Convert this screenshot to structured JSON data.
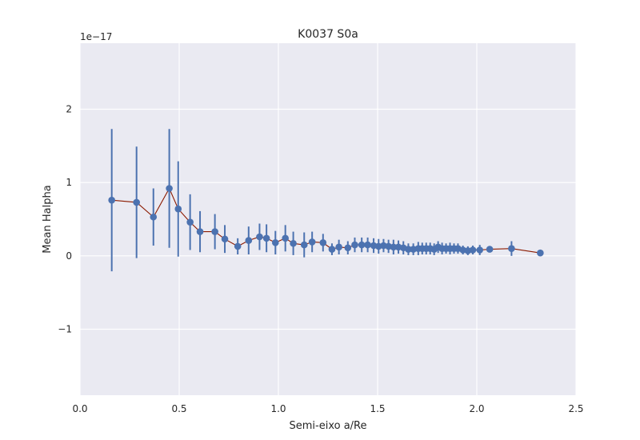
{
  "chart_data": {
    "type": "scatter",
    "title": "K0037 S0a",
    "xlabel": "Semi-eixo a/Re",
    "ylabel": "Mean Halpha",
    "offset_text": "1e−17",
    "xlim": [
      0.0,
      2.5
    ],
    "ylim": [
      -1.9,
      2.9
    ],
    "x_ticks": [
      0.0,
      0.5,
      1.0,
      1.5,
      2.0,
      2.5
    ],
    "x_tick_labels": [
      "0.0",
      "0.5",
      "1.0",
      "1.5",
      "2.0",
      "2.5"
    ],
    "y_ticks": [
      -1,
      0,
      1,
      2
    ],
    "y_tick_labels": [
      "−1",
      "0",
      "1",
      "2"
    ],
    "grid": true,
    "background": "#eaeaf2",
    "grid_color": "#ffffff",
    "series": [
      {
        "marker_color": "#4c72b0",
        "line_color": "#8b1a00",
        "x": [
          0.16,
          0.285,
          0.37,
          0.45,
          0.495,
          0.555,
          0.605,
          0.68,
          0.73,
          0.795,
          0.85,
          0.905,
          0.94,
          0.985,
          1.035,
          1.075,
          1.13,
          1.17,
          1.225,
          1.27,
          1.305,
          1.35,
          1.385,
          1.42,
          1.45,
          1.48,
          1.505,
          1.53,
          1.555,
          1.58,
          1.605,
          1.63,
          1.655,
          1.68,
          1.705,
          1.725,
          1.745,
          1.765,
          1.785,
          1.805,
          1.825,
          1.845,
          1.865,
          1.885,
          1.905,
          1.93,
          1.955,
          1.98,
          2.015,
          2.065,
          2.175,
          2.32
        ],
        "y": [
          0.76,
          0.73,
          0.53,
          0.92,
          0.64,
          0.46,
          0.33,
          0.33,
          0.23,
          0.13,
          0.21,
          0.26,
          0.24,
          0.18,
          0.24,
          0.17,
          0.15,
          0.19,
          0.18,
          0.09,
          0.12,
          0.11,
          0.15,
          0.15,
          0.15,
          0.14,
          0.13,
          0.14,
          0.13,
          0.12,
          0.12,
          0.11,
          0.09,
          0.09,
          0.1,
          0.1,
          0.1,
          0.1,
          0.09,
          0.12,
          0.1,
          0.1,
          0.1,
          0.1,
          0.1,
          0.08,
          0.07,
          0.08,
          0.08,
          0.09,
          0.1,
          0.04
        ],
        "err": [
          0.97,
          0.76,
          0.39,
          0.81,
          0.65,
          0.38,
          0.28,
          0.24,
          0.19,
          0.11,
          0.19,
          0.18,
          0.19,
          0.16,
          0.18,
          0.16,
          0.17,
          0.14,
          0.12,
          0.08,
          0.1,
          0.09,
          0.1,
          0.1,
          0.1,
          0.1,
          0.1,
          0.09,
          0.09,
          0.1,
          0.09,
          0.09,
          0.08,
          0.08,
          0.09,
          0.08,
          0.08,
          0.08,
          0.08,
          0.08,
          0.08,
          0.07,
          0.08,
          0.07,
          0.07,
          0.06,
          0.06,
          0.06,
          0.07,
          0.04,
          0.1,
          0.03
        ]
      }
    ]
  }
}
